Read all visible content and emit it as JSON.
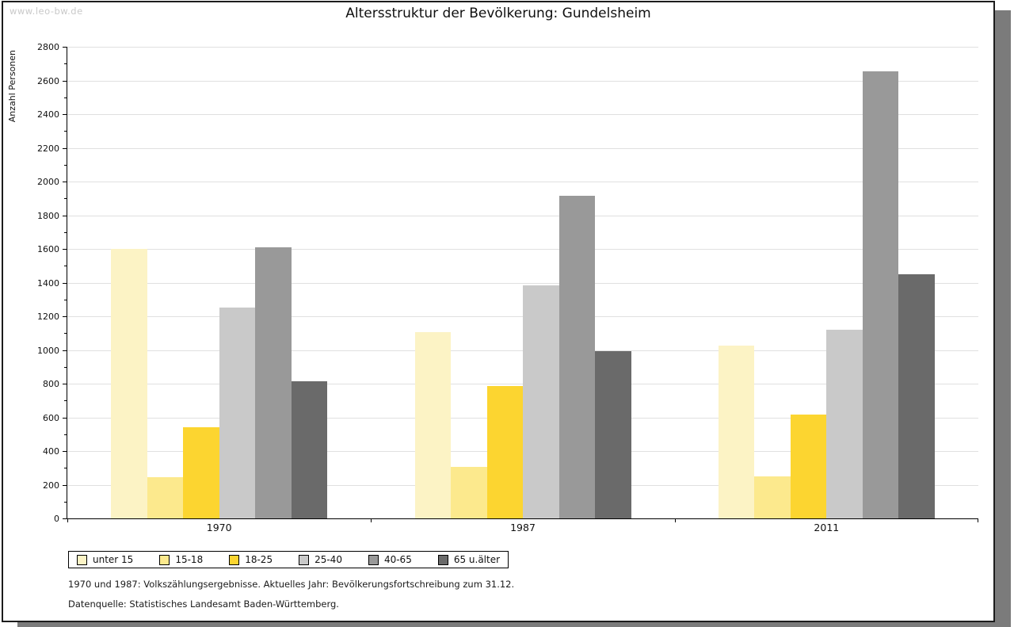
{
  "watermark": "www.leo-bw.de",
  "chart_data": {
    "type": "bar",
    "title": "Altersstruktur der Bevölkerung: Gundelsheim",
    "ylabel": "Anzahl Personen",
    "xlabel": "",
    "ylim": [
      0,
      2800
    ],
    "ytick_step": 200,
    "minor_tick_step": 100,
    "grid": true,
    "legend_position": "bottom-left",
    "categories": [
      "1970",
      "1987",
      "2011"
    ],
    "series": [
      {
        "name": "unter 15",
        "color": "#FCF3C5",
        "values": [
          1600,
          1105,
          1025
        ]
      },
      {
        "name": "15-18",
        "color": "#FCE98D",
        "values": [
          245,
          305,
          250
        ]
      },
      {
        "name": "18-25",
        "color": "#FCD530",
        "values": [
          540,
          785,
          615
        ]
      },
      {
        "name": "25-40",
        "color": "#C9C9C9",
        "values": [
          1250,
          1385,
          1120
        ]
      },
      {
        "name": "40-65",
        "color": "#999999",
        "values": [
          1610,
          1915,
          2655
        ]
      },
      {
        "name": "65 u.älter",
        "color": "#6A6A6A",
        "values": [
          815,
          995,
          1450
        ]
      }
    ]
  },
  "footnotes": {
    "line1": "1970 und 1987: Volkszählungsergebnisse. Aktuelles Jahr: Bevölkerungsfortschreibung zum 31.12.",
    "line2": "Datenquelle: Statistisches Landesamt Baden-Württemberg."
  }
}
